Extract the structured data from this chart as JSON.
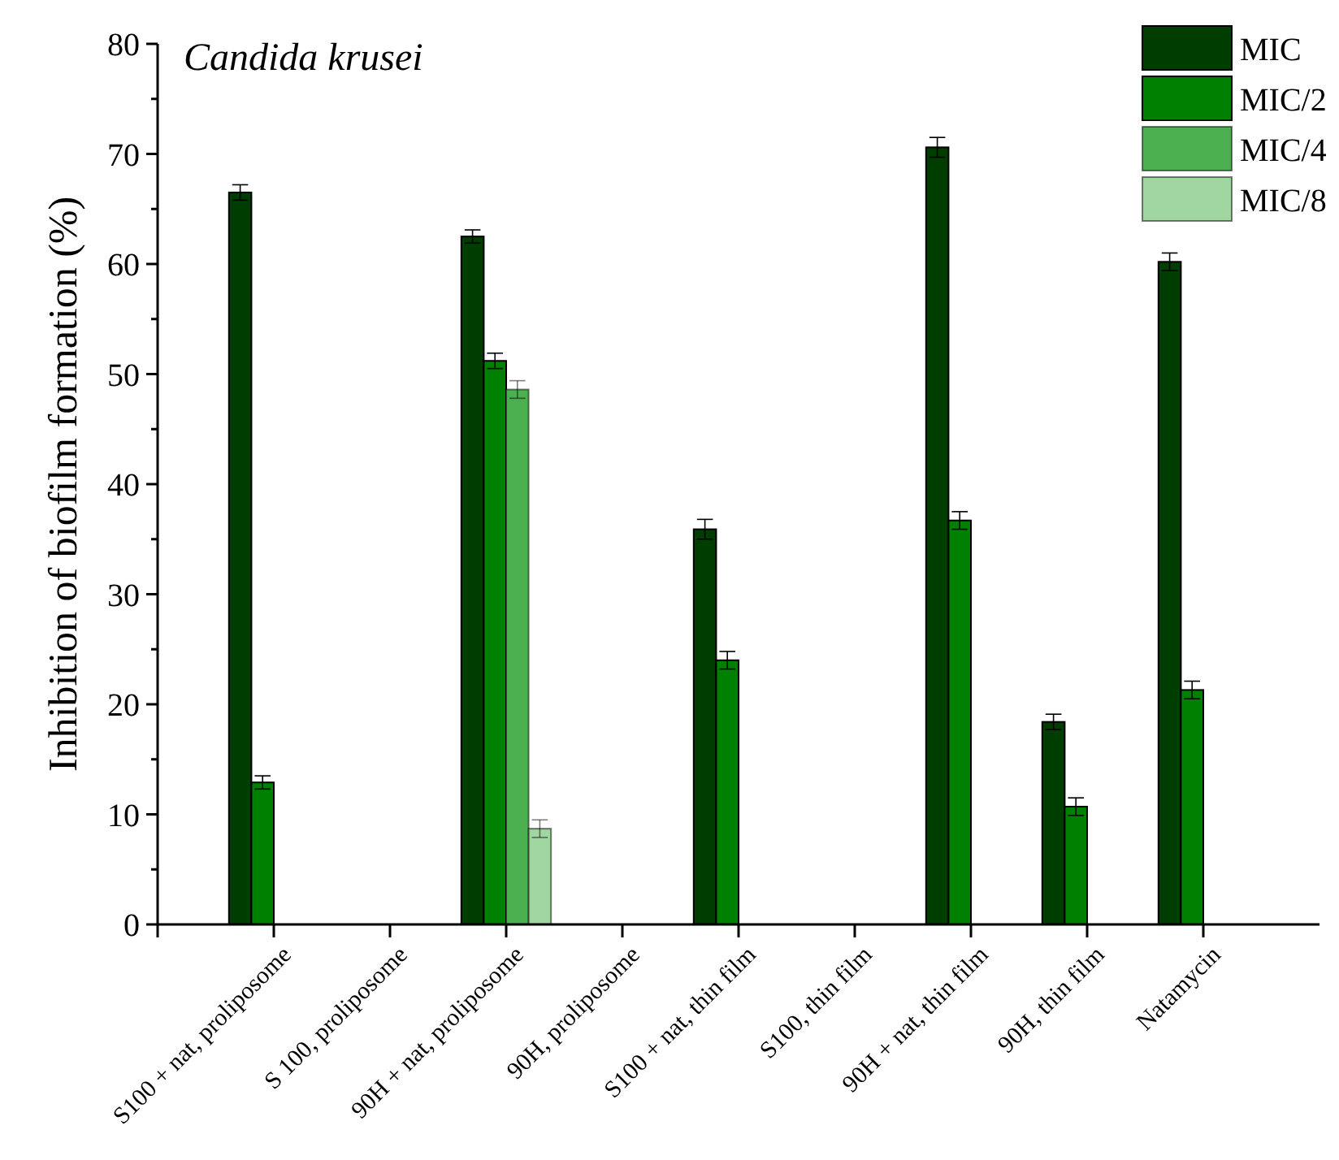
{
  "chart_data": {
    "type": "bar",
    "title": "Candida krusei",
    "ylabel": "Inhibition of biofilm formation (%)",
    "categories": [
      "S100 + nat, proliposome",
      "S 100, proliposome",
      "90H + nat, proliposome",
      "90H, proliposome",
      "S100 + nat, thin film",
      "S100, thin film",
      "90H + nat, thin film",
      "90H, thin film",
      "Natamycin"
    ],
    "series": [
      {
        "name": "MIC",
        "color": "#003d00",
        "values": [
          66.5,
          null,
          62.5,
          null,
          35.9,
          null,
          70.6,
          18.4,
          60.2
        ],
        "errors": [
          0.7,
          null,
          0.6,
          null,
          0.9,
          null,
          0.9,
          0.7,
          0.8
        ]
      },
      {
        "name": "MIC/2",
        "color": "#008000",
        "values": [
          12.9,
          null,
          51.2,
          null,
          24.0,
          null,
          36.7,
          10.7,
          21.3
        ],
        "errors": [
          0.6,
          null,
          0.7,
          null,
          0.8,
          null,
          0.8,
          0.8,
          0.8
        ]
      },
      {
        "name": "MIC/4",
        "color": "#4caf50",
        "values": [
          null,
          null,
          48.6,
          null,
          null,
          null,
          null,
          null,
          null
        ],
        "errors": [
          null,
          null,
          0.8,
          null,
          null,
          null,
          null,
          null,
          null
        ]
      },
      {
        "name": "MIC/8",
        "color": "#a0d6a0",
        "values": [
          null,
          null,
          8.7,
          null,
          null,
          null,
          null,
          null,
          null
        ],
        "errors": [
          null,
          null,
          0.8,
          null,
          null,
          null,
          null,
          null,
          null
        ]
      }
    ],
    "ylim": [
      0,
      80
    ],
    "yticks": [
      0,
      {
        "value": 5,
        "label": null
      },
      10,
      {
        "value": 15,
        "label": null
      },
      20,
      {
        "value": 25,
        "label": null
      },
      30,
      {
        "value": 35,
        "label": null
      },
      40,
      {
        "value": 45,
        "label": null
      },
      50,
      {
        "value": 55,
        "label": null
      },
      60,
      {
        "value": 65,
        "label": null
      },
      70,
      {
        "value": 75,
        "label": null
      },
      80
    ],
    "legend": "top right",
    "grid": false
  }
}
